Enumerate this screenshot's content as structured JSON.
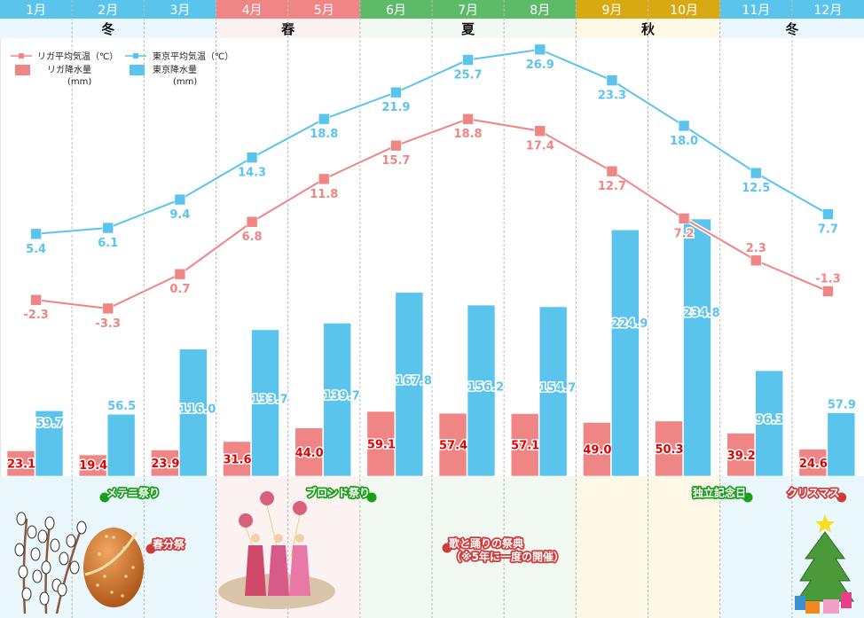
{
  "chart_data": {
    "type": "bar",
    "title": "",
    "xlabel": "",
    "ylabel": "",
    "categories": [
      "1月",
      "2月",
      "3月",
      "4月",
      "5月",
      "6月",
      "7月",
      "8月",
      "9月",
      "10月",
      "11月",
      "12月"
    ],
    "seasons": [
      {
        "label": "冬",
        "months": [
          1,
          2,
          3
        ],
        "header_color": "#5bc4ec",
        "bg_color": "#eaf8fd"
      },
      {
        "label": "春",
        "months": [
          4,
          5
        ],
        "header_color": "#f08585",
        "bg_color": "#fdf2f2"
      },
      {
        "label": "夏",
        "months": [
          6,
          7,
          8
        ],
        "header_color": "#5cba69",
        "bg_color": "#f2f9f2"
      },
      {
        "label": "秋",
        "months": [
          9,
          10
        ],
        "header_color": "#d9a913",
        "bg_color": "#fef8e6"
      },
      {
        "label": "冬",
        "months": [
          11,
          12
        ],
        "header_color": "#5bc4ec",
        "bg_color": "#eaf8fd"
      }
    ],
    "series": [
      {
        "name": "リガ平均気温（℃）",
        "kind": "line",
        "color": "#f08585",
        "values": [
          -2.3,
          -3.3,
          0.7,
          6.8,
          11.8,
          15.7,
          18.8,
          17.4,
          12.7,
          7.2,
          2.3,
          -1.3
        ]
      },
      {
        "name": "東京平均気温（℃）",
        "kind": "line",
        "color": "#5bc4ec",
        "values": [
          5.4,
          6.1,
          9.4,
          14.3,
          18.8,
          21.9,
          25.7,
          26.9,
          23.3,
          18.0,
          12.5,
          7.7
        ]
      },
      {
        "name": "リガ降水量（mm）",
        "kind": "bar",
        "color": "#f08585",
        "label_color": "#e60000",
        "values": [
          23.1,
          19.4,
          23.9,
          31.6,
          44.0,
          59.1,
          57.4,
          57.1,
          49.0,
          50.3,
          39.2,
          24.6
        ]
      },
      {
        "name": "東京降水量（mm）",
        "kind": "bar",
        "color": "#5bc4ec",
        "label_color": "#5bc4ec",
        "values": [
          59.7,
          56.5,
          116.0,
          133.7,
          139.7,
          167.8,
          156.2,
          154.7,
          224.9,
          234.8,
          96.3,
          57.9
        ]
      }
    ],
    "legend": {
      "placement": "top-left",
      "entries": [
        {
          "line1": "リガ平均気温（℃）",
          "line2": ""
        },
        {
          "line1": "東京平均気温（℃）",
          "line2": ""
        },
        {
          "line1": "リガ降水量",
          "line2": "(mm)"
        },
        {
          "line1": "東京降水量",
          "line2": "(mm)"
        }
      ]
    },
    "temp_axis_range": [
      -5,
      30
    ],
    "precip_axis_range": [
      0,
      240
    ],
    "grid": "vertical dashed month separators",
    "events": [
      {
        "label": "メテニ祭り",
        "month": 2,
        "color": "#1a9e1a",
        "dot_side": "left",
        "row": 1
      },
      {
        "label": "春分祭",
        "month": 3,
        "color": "#d03a3a",
        "dot_side": "left",
        "row": 2
      },
      {
        "label": "ブロンド祭り",
        "month": 5,
        "color": "#1a9e1a",
        "dot_side": "right",
        "row": 1
      },
      {
        "label": "歌と踊りの祭典",
        "label2": "（※5年に一度の開催）",
        "month": 7,
        "color": "#d03a3a",
        "dot_side": "left",
        "row": 3
      },
      {
        "label": "独立記念日",
        "month": 11,
        "color": "#1a9e1a",
        "dot_side": "right",
        "row": 1
      },
      {
        "label": "クリスマス",
        "month": 12,
        "color": "#d03a3a",
        "dot_side": "right",
        "row": 1
      }
    ],
    "illustrations": [
      "pussy-willow",
      "easter-egg",
      "women-with-balloons",
      "christmas-tree"
    ]
  }
}
